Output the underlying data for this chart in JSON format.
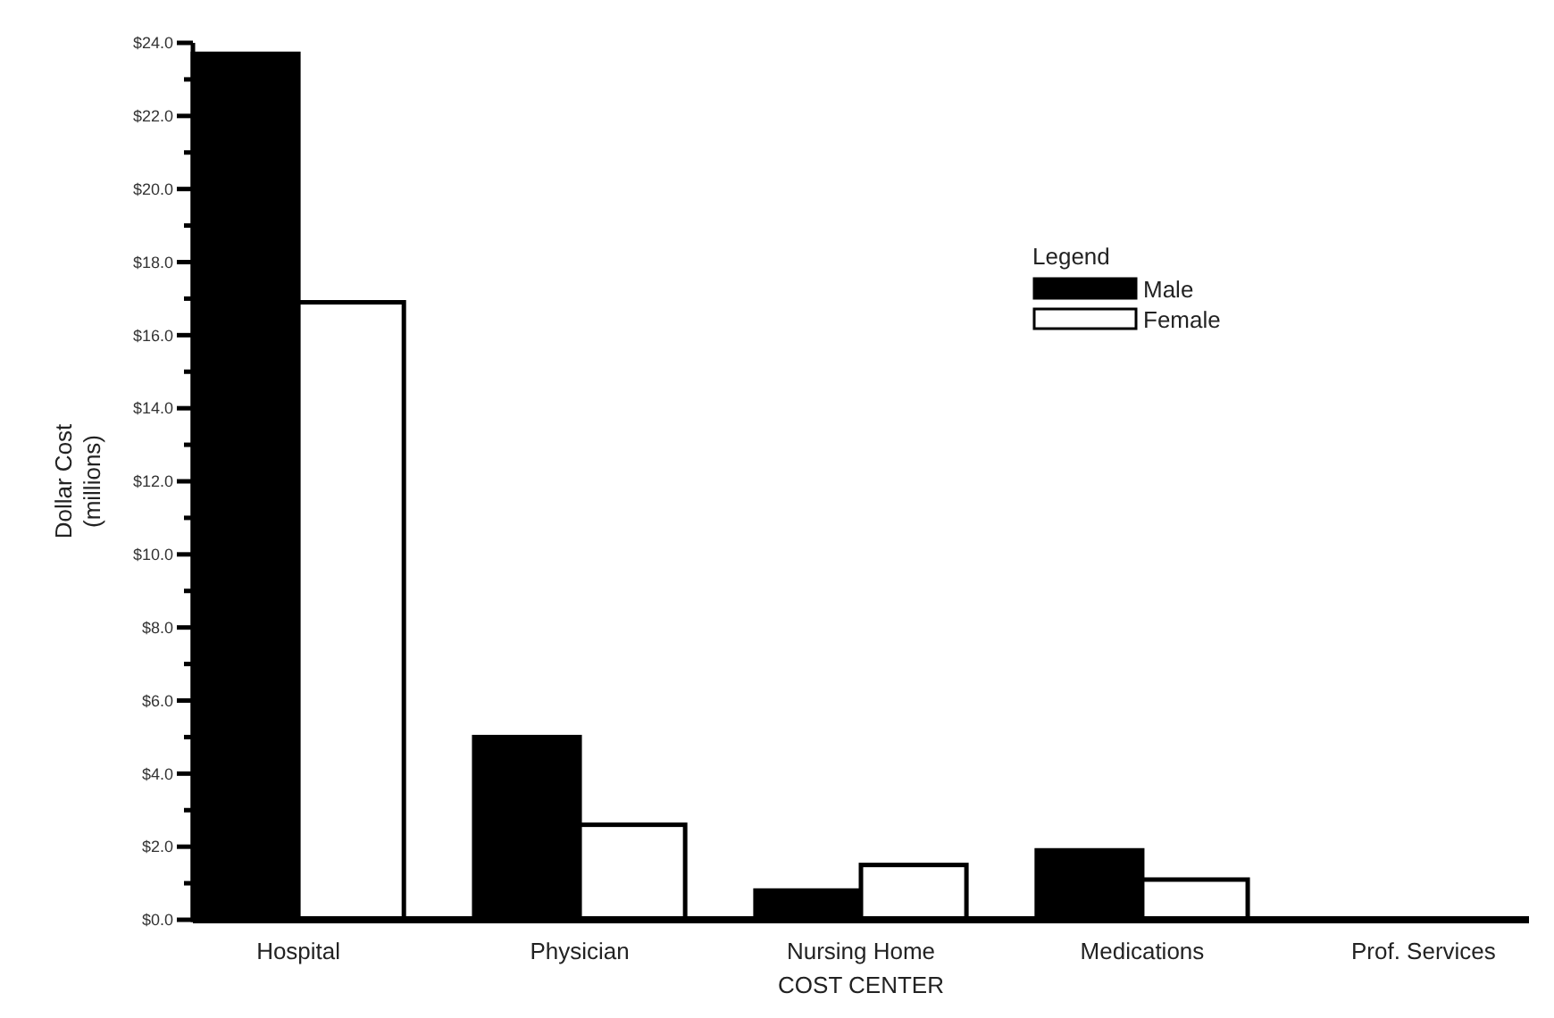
{
  "chart_data": {
    "type": "bar",
    "xlabel": "COST CENTER",
    "ylabel": "Dollar Cost\n(millions)",
    "legend_title": "Legend",
    "legend": "top right",
    "categories": [
      "Hospital",
      "Physician",
      "Nursing Home",
      "Medications",
      "Prof. Services"
    ],
    "series": [
      {
        "name": "Male",
        "color": "#000000",
        "values": [
          23.7,
          5.0,
          0.8,
          1.9,
          0
        ]
      },
      {
        "name": "Female",
        "color": "#ffffff",
        "values": [
          16.9,
          2.6,
          1.5,
          1.1,
          0
        ]
      }
    ],
    "ylim": [
      0,
      24
    ],
    "yticks": [
      {
        "value": 0,
        "label": "$0.0"
      },
      {
        "value": 1,
        "label": null
      },
      {
        "value": 2,
        "label": "$2.0"
      },
      {
        "value": 3,
        "label": null
      },
      {
        "value": 4,
        "label": "$4.0"
      },
      {
        "value": 5,
        "label": null
      },
      {
        "value": 6,
        "label": "$6.0"
      },
      {
        "value": 7,
        "label": null
      },
      {
        "value": 8,
        "label": "$8.0"
      },
      {
        "value": 9,
        "label": null
      },
      {
        "value": 10,
        "label": "$10.0"
      },
      {
        "value": 11,
        "label": null
      },
      {
        "value": 12,
        "label": "$12.0"
      },
      {
        "value": 13,
        "label": null
      },
      {
        "value": 14,
        "label": "$14.0"
      },
      {
        "value": 15,
        "label": null
      },
      {
        "value": 16,
        "label": "$16.0"
      },
      {
        "value": 17,
        "label": null
      },
      {
        "value": 18,
        "label": "$18.0"
      },
      {
        "value": 19,
        "label": null
      },
      {
        "value": 20,
        "label": "$20.0"
      },
      {
        "value": 21,
        "label": null
      },
      {
        "value": 22,
        "label": "$22.0"
      },
      {
        "value": 23,
        "label": null
      },
      {
        "value": 24,
        "label": "$24.0"
      }
    ]
  }
}
